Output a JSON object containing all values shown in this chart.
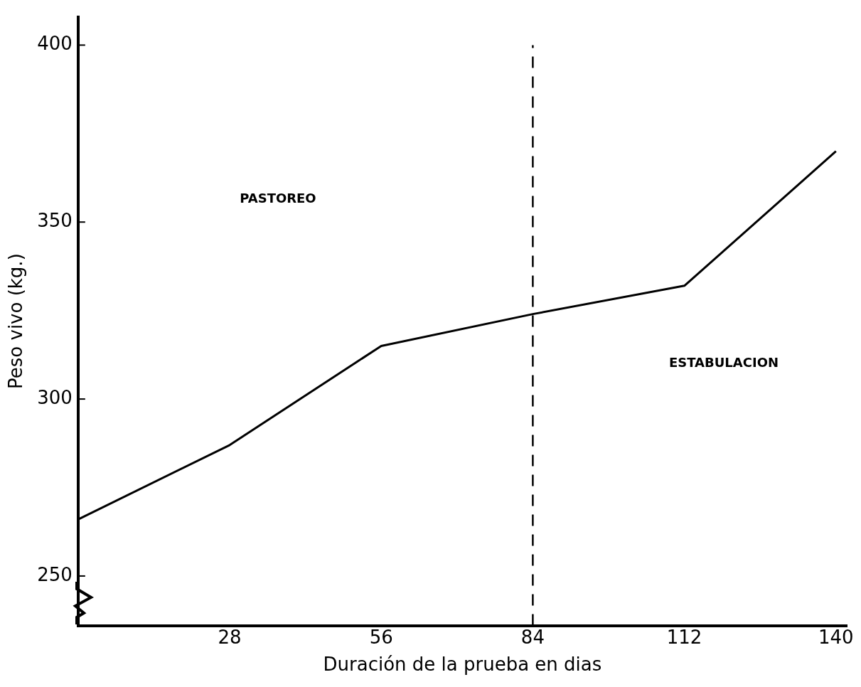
{
  "chart_data": {
    "type": "line",
    "xlabel": "Duración de la prueba en dias",
    "ylabel": "Peso vivo (kg.)",
    "x": [
      0,
      28,
      56,
      84,
      112,
      140
    ],
    "series": [
      {
        "color": "#000000",
        "values": [
          266,
          287,
          315,
          324,
          332,
          370
        ]
      }
    ],
    "xlim": [
      0,
      142
    ],
    "xticks": [
      28,
      56,
      84,
      112,
      140
    ],
    "ylim": [
      236,
      408
    ],
    "yticks": [
      250,
      300,
      350,
      400
    ],
    "ref_lines": [
      {
        "axis": "x",
        "value": 84,
        "color": "#000000",
        "line_style": "dashed"
      }
    ],
    "annotations": [
      "PASTOREO",
      "ESTABULACION"
    ],
    "grid": false,
    "legend": false,
    "marker": "none",
    "line_style": "solid"
  }
}
